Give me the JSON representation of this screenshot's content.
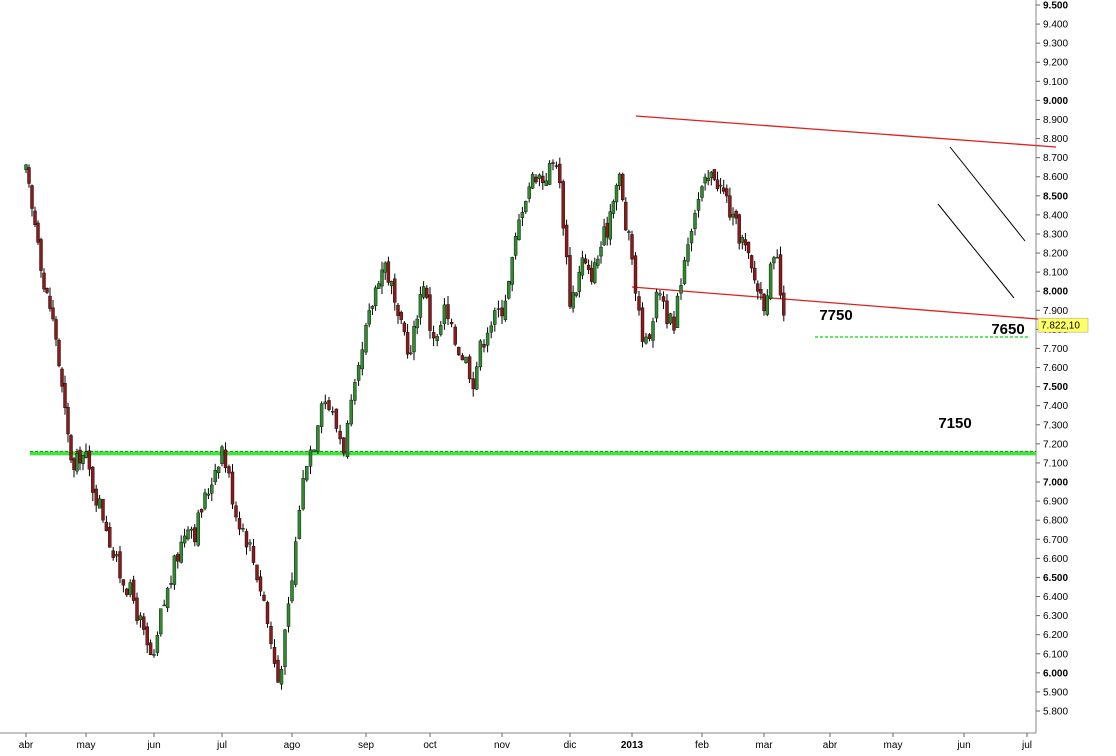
{
  "chart_data": {
    "type": "candlestick",
    "y_axis": {
      "position": "right",
      "range": [
        5700,
        9500
      ],
      "ticks": [
        "5.800",
        "5.900",
        "6.000",
        "6.100",
        "6.200",
        "6.300",
        "6.400",
        "6.500",
        "6.600",
        "6.700",
        "6.800",
        "6.900",
        "7.000",
        "7.100",
        "7.200",
        "7.300",
        "7.400",
        "7.500",
        "7.600",
        "7.700",
        "7.800",
        "7.900",
        "8.000",
        "8.100",
        "8.200",
        "8.300",
        "8.400",
        "8.500",
        "8.600",
        "8.700",
        "8.800",
        "8.900",
        "9.000",
        "9.100",
        "9.200",
        "9.300",
        "9.400",
        "9.500"
      ],
      "tick_values": [
        5800,
        5900,
        6000,
        6100,
        6200,
        6300,
        6400,
        6500,
        6600,
        6700,
        6800,
        6900,
        7000,
        7100,
        7200,
        7300,
        7400,
        7500,
        7600,
        7700,
        7800,
        7900,
        8000,
        8100,
        8200,
        8300,
        8400,
        8500,
        8600,
        8700,
        8800,
        8900,
        9000,
        9100,
        9200,
        9300,
        9400,
        9500
      ],
      "bold_ticks": [
        "6.000",
        "6.500",
        "7.000",
        "7.500",
        "8.000",
        "8.500",
        "9.000",
        "9.500"
      ]
    },
    "x_axis": {
      "month_labels": [
        "abr",
        "may",
        "jun",
        "jul",
        "ago",
        "sep",
        "oct",
        "nov",
        "dic",
        "2013",
        "feb",
        "mar",
        "abr",
        "may",
        "jun",
        "jul"
      ],
      "month_index": [
        0,
        1,
        2,
        3,
        4,
        5,
        6,
        7,
        8,
        9,
        10,
        11,
        12,
        13,
        14,
        15
      ],
      "bold_labels": [
        "2013"
      ]
    },
    "last_price": "7.822,10",
    "last_price_value": 7822.1,
    "colors": {
      "up_candle": "#2e8b2e",
      "down_candle": "#8b1a1a",
      "wick": "#000000",
      "channel": "#e02020",
      "support": "#33dd33",
      "wedge": "#000000",
      "badge": "#ffff66"
    },
    "annotations": [
      {
        "id": "support-7150",
        "label": "7150",
        "value": 7150
      },
      {
        "id": "support-7750",
        "label": "7750",
        "value": 7750
      },
      {
        "id": "target-7650",
        "label": "7650",
        "value": 7650
      }
    ],
    "series": [
      {
        "points": [
          [
            0.0,
            8620
          ],
          [
            0.1,
            8420
          ],
          [
            0.2,
            8300
          ],
          [
            0.3,
            8020
          ],
          [
            0.4,
            7920
          ],
          [
            0.5,
            7760
          ],
          [
            0.6,
            7480
          ],
          [
            0.7,
            7230
          ],
          [
            0.8,
            7050
          ],
          [
            0.9,
            7150
          ],
          [
            1.0,
            7120
          ],
          [
            1.1,
            6980
          ],
          [
            1.2,
            6880
          ],
          [
            1.3,
            6780
          ],
          [
            1.4,
            6620
          ],
          [
            1.5,
            6520
          ],
          [
            1.6,
            6460
          ],
          [
            1.7,
            6380
          ],
          [
            1.8,
            6260
          ],
          [
            1.9,
            6120
          ],
          [
            2.0,
            6050
          ],
          [
            2.1,
            6300
          ],
          [
            2.2,
            6430
          ],
          [
            2.3,
            6560
          ],
          [
            2.4,
            6680
          ],
          [
            2.5,
            6800
          ],
          [
            2.6,
            6740
          ],
          [
            2.7,
            6860
          ],
          [
            2.8,
            6960
          ],
          [
            2.9,
            7080
          ],
          [
            3.0,
            7180
          ],
          [
            3.1,
            7020
          ],
          [
            3.2,
            6840
          ],
          [
            3.3,
            6760
          ],
          [
            3.4,
            6660
          ],
          [
            3.5,
            6520
          ],
          [
            3.6,
            6380
          ],
          [
            3.7,
            6150
          ],
          [
            3.8,
            5960
          ],
          [
            3.9,
            6180
          ],
          [
            4.0,
            6480
          ],
          [
            4.1,
            6880
          ],
          [
            4.2,
            7130
          ],
          [
            4.3,
            7220
          ],
          [
            4.4,
            7460
          ],
          [
            4.5,
            7400
          ],
          [
            4.6,
            7290
          ],
          [
            4.7,
            7190
          ],
          [
            4.8,
            7380
          ],
          [
            4.9,
            7560
          ],
          [
            5.0,
            7780
          ],
          [
            5.1,
            7940
          ],
          [
            5.2,
            8090
          ],
          [
            5.3,
            8140
          ],
          [
            5.4,
            8020
          ],
          [
            5.5,
            7820
          ],
          [
            5.6,
            7780
          ],
          [
            5.7,
            7660
          ],
          [
            5.8,
            7900
          ],
          [
            5.9,
            8060
          ],
          [
            6.0,
            7820
          ],
          [
            6.1,
            7740
          ],
          [
            6.2,
            7900
          ],
          [
            6.3,
            7780
          ],
          [
            6.4,
            7700
          ],
          [
            6.5,
            7640
          ],
          [
            6.6,
            7540
          ],
          [
            6.7,
            7700
          ],
          [
            6.8,
            7820
          ],
          [
            6.9,
            7860
          ],
          [
            7.0,
            7920
          ],
          [
            7.1,
            8040
          ],
          [
            7.2,
            8260
          ],
          [
            7.3,
            8460
          ],
          [
            7.4,
            8560
          ],
          [
            7.5,
            8620
          ],
          [
            7.6,
            8590
          ],
          [
            7.7,
            8640
          ],
          [
            7.8,
            8700
          ],
          [
            7.9,
            8380
          ],
          [
            8.0,
            7960
          ],
          [
            8.1,
            8020
          ],
          [
            8.2,
            8160
          ],
          [
            8.3,
            8080
          ],
          [
            8.4,
            8120
          ],
          [
            8.5,
            8240
          ],
          [
            8.6,
            8330
          ],
          [
            8.7,
            8520
          ],
          [
            8.8,
            8590
          ],
          [
            8.9,
            8340
          ],
          [
            9.0,
            8180
          ],
          [
            9.1,
            7860
          ],
          [
            9.2,
            7720
          ],
          [
            9.3,
            7880
          ],
          [
            9.4,
            8020
          ],
          [
            9.5,
            7880
          ],
          [
            9.6,
            7780
          ],
          [
            9.7,
            8080
          ],
          [
            9.8,
            8280
          ],
          [
            9.9,
            8440
          ],
          [
            10.0,
            8520
          ],
          [
            10.1,
            8580
          ],
          [
            10.2,
            8620
          ],
          [
            10.3,
            8540
          ],
          [
            10.4,
            8480
          ],
          [
            10.5,
            8360
          ],
          [
            10.6,
            8300
          ],
          [
            10.7,
            8220
          ],
          [
            10.8,
            8100
          ],
          [
            10.9,
            8020
          ],
          [
            11.0,
            7950
          ],
          [
            11.1,
            8100
          ],
          [
            11.2,
            8150
          ],
          [
            11.3,
            7822
          ]
        ]
      }
    ]
  }
}
